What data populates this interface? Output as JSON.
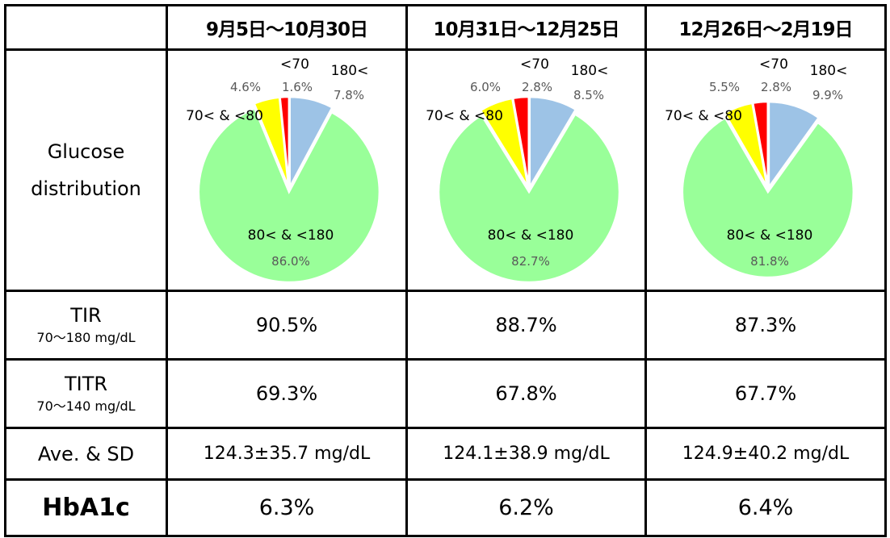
{
  "row_labels": {
    "glucose_line1": "Glucose",
    "glucose_line2": "distribution",
    "tir": "TIR",
    "tir_range": "70〜180 mg/dL",
    "titr": "TITR",
    "titr_range": "70〜140 mg/dL",
    "ave_sd": "Ave. & SD",
    "hba1c": "HbA1c"
  },
  "periods": [
    {
      "label": "9月5日〜10月30日",
      "tir": "90.5%",
      "titr": "69.3%",
      "ave_sd": "124.3±35.7 mg/dL",
      "hba1c": "6.3%"
    },
    {
      "label": "10月31日〜12月25日",
      "tir": "88.7%",
      "titr": "67.8%",
      "ave_sd": "124.1±38.9 mg/dL",
      "hba1c": "6.2%"
    },
    {
      "label": "12月26日〜2月19日",
      "tir": "87.3%",
      "titr": "67.7%",
      "ave_sd": "124.9±40.2 mg/dL",
      "hba1c": "6.4%"
    }
  ],
  "chart_data": [
    {
      "type": "pie",
      "categories": [
        "180<",
        "80< & <180",
        "70< & <80",
        "<70"
      ],
      "values": [
        7.8,
        86.0,
        4.6,
        1.6
      ],
      "labels": [
        "7.8%",
        "86.0%",
        "4.6%",
        "1.6%"
      ],
      "colors": [
        "#9DC3E6",
        "#99FF99",
        "#FFFF00",
        "#FF0000"
      ]
    },
    {
      "type": "pie",
      "categories": [
        "180<",
        "80< & <180",
        "70< & <80",
        "<70"
      ],
      "values": [
        8.5,
        82.7,
        6.0,
        2.8
      ],
      "labels": [
        "8.5%",
        "82.7%",
        "6.0%",
        "2.8%"
      ],
      "colors": [
        "#9DC3E6",
        "#99FF99",
        "#FFFF00",
        "#FF0000"
      ]
    },
    {
      "type": "pie",
      "categories": [
        "180<",
        "80< & <180",
        "70< & <80",
        "<70"
      ],
      "values": [
        9.9,
        81.8,
        5.5,
        2.8
      ],
      "labels": [
        "9.9%",
        "81.8%",
        "5.5%",
        "2.8%"
      ],
      "colors": [
        "#9DC3E6",
        "#99FF99",
        "#FFFF00",
        "#FF0000"
      ]
    }
  ]
}
